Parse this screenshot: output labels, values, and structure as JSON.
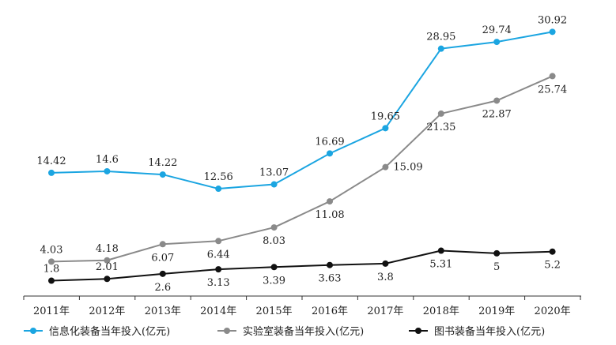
{
  "chart_data": {
    "type": "line",
    "title": "",
    "xlabel": "",
    "ylabel": "",
    "categories": [
      "2011年",
      "2012年",
      "2013年",
      "2014年",
      "2015年",
      "2016年",
      "2017年",
      "2018年",
      "2019年",
      "2020年"
    ],
    "ylim": [
      0,
      34
    ],
    "grid": false,
    "legend_position": "bottom",
    "series": [
      {
        "name": "信息化装备当年投入(亿元)",
        "color": "#1ba5e1",
        "values": [
          14.42,
          14.6,
          14.22,
          12.56,
          13.07,
          16.69,
          19.65,
          28.95,
          29.74,
          30.92
        ],
        "labels": [
          "14.42",
          "14.6",
          "14.22",
          "12.56",
          "13.07",
          "16.69",
          "19.65",
          "28.95",
          "29.74",
          "30.92"
        ],
        "label_pos": [
          "above",
          "above",
          "above",
          "above",
          "above",
          "above",
          "above",
          "above",
          "above",
          "above"
        ]
      },
      {
        "name": "实验室装备当年投入(亿元)",
        "color": "#8a8a8a",
        "values": [
          4.03,
          4.18,
          6.07,
          6.44,
          8.03,
          11.08,
          15.09,
          21.35,
          22.87,
          25.74
        ],
        "labels": [
          "4.03",
          "4.18",
          "6.07",
          "6.44",
          "8.03",
          "11.08",
          "15.09",
          "21.35",
          "22.87",
          "25.74"
        ],
        "label_pos": [
          "above",
          "above",
          "below",
          "below",
          "below",
          "below",
          "right",
          "below",
          "below",
          "below"
        ]
      },
      {
        "name": "图书装备当年投入(亿元)",
        "color": "#111111",
        "values": [
          1.8,
          2.01,
          2.6,
          3.13,
          3.39,
          3.63,
          3.8,
          5.31,
          5.0,
          5.2
        ],
        "labels": [
          "1.8",
          "2.01",
          "2.6",
          "3.13",
          "3.39",
          "3.63",
          "3.8",
          "5.31",
          "5",
          "5.2"
        ],
        "label_pos": [
          "above",
          "above",
          "below",
          "below",
          "below",
          "below",
          "below",
          "below",
          "below",
          "below"
        ]
      }
    ]
  }
}
